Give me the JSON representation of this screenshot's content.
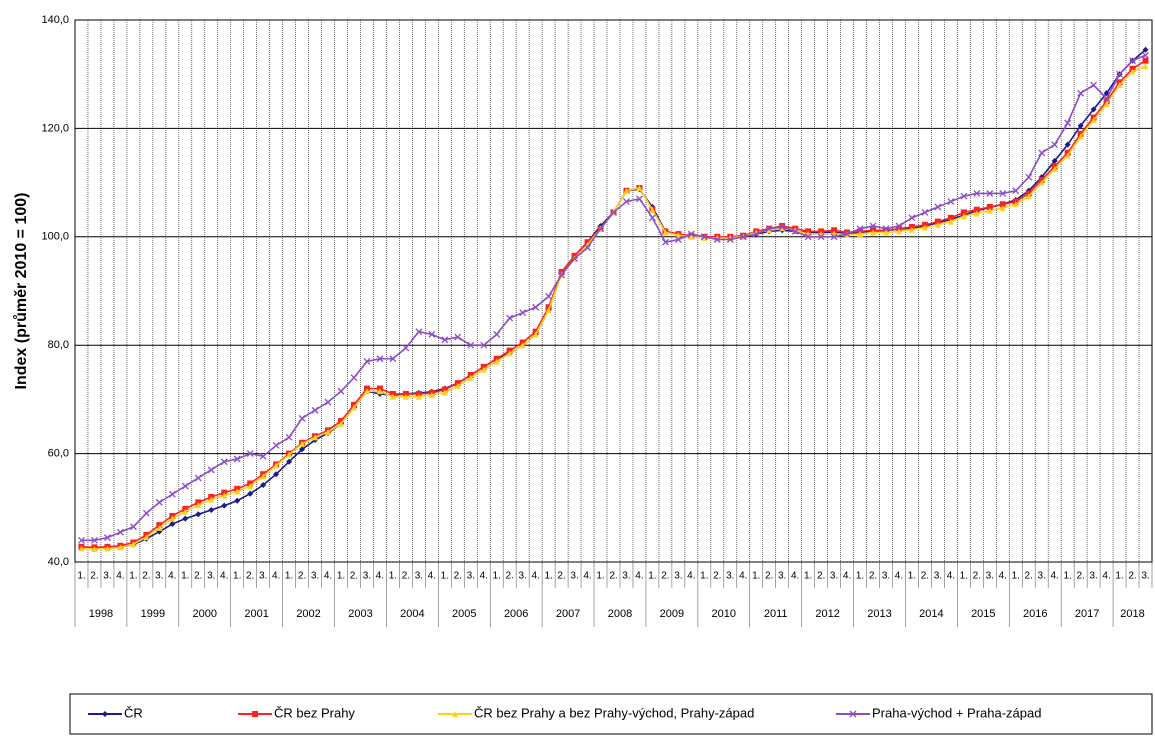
{
  "chart_data": {
    "type": "line",
    "y_label": "Index (průměr 2010 = 100)",
    "categories": [
      "1.",
      "2.",
      "3.",
      "4.",
      "1.",
      "2.",
      "3.",
      "4.",
      "1.",
      "2.",
      "3.",
      "4.",
      "1.",
      "2.",
      "3.",
      "4.",
      "1.",
      "2.",
      "3.",
      "4.",
      "1.",
      "2.",
      "3.",
      "4.",
      "1.",
      "2.",
      "3.",
      "4.",
      "1.",
      "2.",
      "3.",
      "4.",
      "1.",
      "2.",
      "3.",
      "4.",
      "1.",
      "2.",
      "3.",
      "4.",
      "1.",
      "2.",
      "3.",
      "4.",
      "1.",
      "2.",
      "3.",
      "4.",
      "1.",
      "2.",
      "3.",
      "4.",
      "1.",
      "2.",
      "3.",
      "4.",
      "1.",
      "2.",
      "3.",
      "4.",
      "1.",
      "2.",
      "3.",
      "4.",
      "1.",
      "2.",
      "3.",
      "4.",
      "1.",
      "2.",
      "3.",
      "4.",
      "1.",
      "2.",
      "3.",
      "4.",
      "1.",
      "2.",
      "3.",
      "4.",
      "1.",
      "2.",
      "3."
    ],
    "years": [
      "1998",
      "1999",
      "2000",
      "2001",
      "2002",
      "2003",
      "2004",
      "2005",
      "2006",
      "2007",
      "2008",
      "2009",
      "2010",
      "2011",
      "2012",
      "2013",
      "2014",
      "2015",
      "2016",
      "2017",
      "2018"
    ],
    "ylim": [
      40,
      140
    ],
    "yticks": [
      {
        "value": 40,
        "label": "40,0"
      },
      {
        "value": 60,
        "label": "60,0"
      },
      {
        "value": 80,
        "label": "80,0"
      },
      {
        "value": 100,
        "label": "100,0"
      },
      {
        "value": 120,
        "label": "120,0"
      },
      {
        "value": 140,
        "label": "140,0"
      }
    ],
    "grid": true,
    "legend": "bottom",
    "series": [
      {
        "name": "ČR",
        "color": "#1a1a8c",
        "marker": "diamond",
        "values": [
          42.5,
          42.5,
          42.6,
          42.8,
          43.2,
          44.3,
          45.6,
          47.0,
          48.0,
          48.8,
          49.6,
          50.4,
          51.3,
          52.6,
          54.2,
          56.2,
          58.5,
          60.8,
          62.5,
          63.8,
          65.5,
          68.5,
          71.5,
          71.0,
          70.8,
          71.0,
          71.2,
          71.4,
          72.0,
          73.0,
          74.5,
          76.0,
          77.5,
          78.5,
          80.0,
          82.0,
          86.5,
          93.5,
          96.5,
          99.0,
          102.0,
          104.5,
          108.5,
          108.8,
          105.5,
          101.0,
          100.5,
          100.0,
          100.0,
          99.8,
          99.8,
          100.0,
          100.5,
          101.0,
          101.2,
          101.0,
          100.8,
          100.8,
          100.8,
          100.6,
          100.8,
          101.0,
          101.2,
          101.4,
          101.6,
          102.0,
          102.6,
          103.2,
          104.0,
          104.8,
          105.4,
          106.0,
          106.8,
          108.5,
          111.0,
          114.0,
          117.0,
          120.5,
          123.5,
          126.5,
          130.0,
          132.5,
          134.5
        ]
      },
      {
        "name": "ČR bez Prahy",
        "color": "#ff2020",
        "marker": "square",
        "values": [
          42.8,
          42.7,
          42.8,
          43.0,
          43.6,
          45.0,
          46.8,
          48.5,
          49.8,
          51.0,
          52.0,
          52.8,
          53.5,
          54.5,
          56.2,
          58.0,
          60.0,
          62.0,
          63.2,
          64.3,
          66.0,
          69.0,
          72.0,
          72.0,
          71.0,
          71.0,
          71.0,
          71.2,
          71.8,
          73.0,
          74.5,
          76.0,
          77.5,
          79.0,
          80.5,
          82.5,
          87.0,
          93.5,
          96.5,
          99.0,
          101.5,
          104.5,
          108.5,
          109.0,
          105.0,
          101.0,
          100.5,
          100.2,
          100.0,
          100.0,
          100.0,
          100.2,
          101.0,
          101.5,
          102.0,
          101.5,
          101.0,
          101.0,
          101.2,
          100.8,
          101.0,
          101.2,
          101.2,
          101.5,
          101.8,
          102.2,
          102.8,
          103.5,
          104.5,
          105.0,
          105.5,
          106.0,
          106.5,
          108.0,
          110.5,
          113.0,
          115.5,
          119.0,
          122.0,
          125.0,
          128.5,
          131.0,
          132.5
        ]
      },
      {
        "name": "ČR bez Prahy a bez Prahy-východ, Prahy-západ",
        "color": "#ffd21e",
        "marker": "triangle",
        "values": [
          42.5,
          42.4,
          42.5,
          42.7,
          43.3,
          44.6,
          46.3,
          48.0,
          49.3,
          50.5,
          51.5,
          52.3,
          53.0,
          54.0,
          55.8,
          57.8,
          59.8,
          61.8,
          63.0,
          64.0,
          65.5,
          68.5,
          71.5,
          71.5,
          70.5,
          70.5,
          70.5,
          70.8,
          71.3,
          72.5,
          74.0,
          75.5,
          77.0,
          78.5,
          80.0,
          82.0,
          86.5,
          93.0,
          96.0,
          98.5,
          101.5,
          104.5,
          108.5,
          109.0,
          105.0,
          100.8,
          100.3,
          100.0,
          99.8,
          99.8,
          99.8,
          100.0,
          100.8,
          101.2,
          101.6,
          101.2,
          100.5,
          100.5,
          100.6,
          100.4,
          100.5,
          100.8,
          100.8,
          101.0,
          101.3,
          101.7,
          102.2,
          102.8,
          103.8,
          104.3,
          104.8,
          105.3,
          106.0,
          107.5,
          110.0,
          112.5,
          115.0,
          118.5,
          121.5,
          124.5,
          128.0,
          130.5,
          131.5
        ]
      },
      {
        "name": "Praha-východ + Praha-západ",
        "color": "#8a4cc8",
        "marker": "cross",
        "values": [
          44.0,
          44.0,
          44.5,
          45.5,
          46.5,
          49.0,
          51.0,
          52.5,
          54.0,
          55.5,
          57.0,
          58.5,
          59.0,
          60.0,
          59.5,
          61.5,
          63.0,
          66.5,
          68.0,
          69.5,
          71.5,
          74.0,
          77.0,
          77.5,
          77.5,
          79.5,
          82.5,
          82.0,
          81.0,
          81.5,
          80.0,
          80.0,
          82.0,
          85.0,
          86.0,
          87.0,
          89.0,
          93.0,
          96.0,
          98.0,
          101.5,
          104.5,
          106.5,
          107.0,
          103.5,
          99.0,
          99.5,
          100.5,
          100.0,
          99.5,
          99.5,
          100.0,
          100.5,
          101.5,
          101.8,
          101.0,
          100.0,
          100.0,
          100.0,
          100.5,
          101.5,
          102.0,
          101.5,
          102.0,
          103.5,
          104.5,
          105.5,
          106.5,
          107.5,
          108.0,
          108.0,
          108.0,
          108.5,
          111.0,
          115.5,
          117.0,
          121.0,
          126.5,
          128.0,
          125.5,
          130.0,
          132.5,
          133.5
        ]
      }
    ]
  }
}
